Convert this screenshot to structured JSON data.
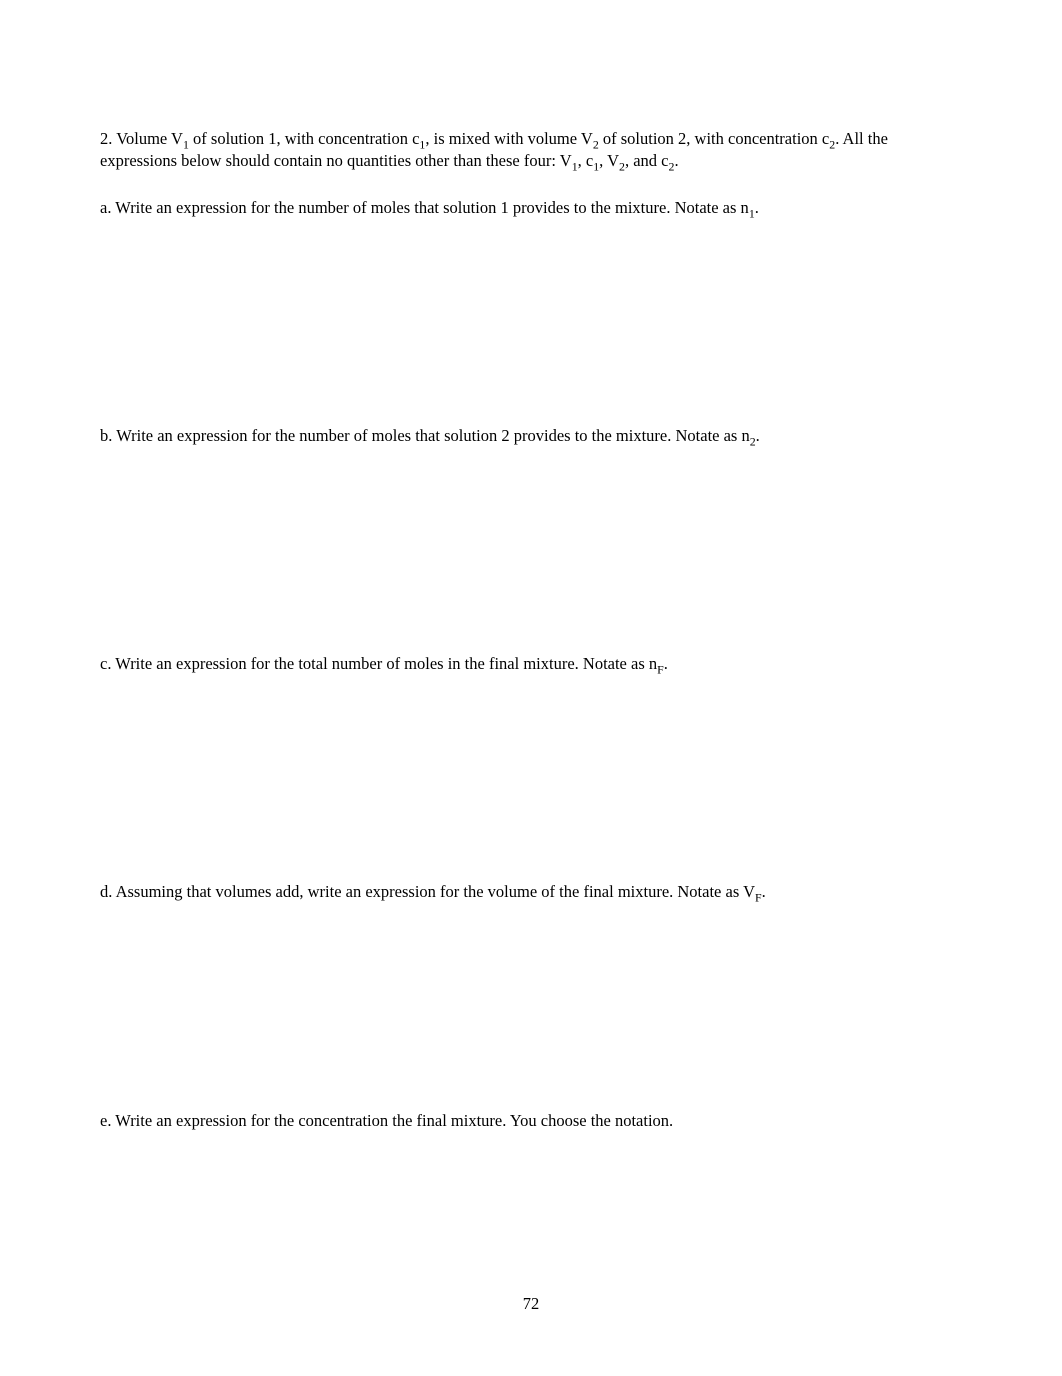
{
  "intro": {
    "prefix": "2. Volume   V",
    "sub1": "1",
    "part2": " of solution 1, with concentration c",
    "sub2": "1",
    "part3": ", is mixed with volume V",
    "sub3": "2",
    "part4": " of solution 2, with concentration c",
    "sub4": "2",
    "part5": ".  All the expressions below should contain no quantities other than these four: V",
    "sub5": "1",
    "part6": ", c",
    "sub6": "1",
    "part7": ", V",
    "sub7": "2",
    "part8": ", and c",
    "sub8": "2",
    "part9": "."
  },
  "qa": {
    "text1": "a.  Write an expression for the number of moles that solution 1 provides to the mixture.   Notate as n",
    "sub": "1",
    "text2": "."
  },
  "qb": {
    "text1": "b.  Write an expression for the number of moles that solution 2 provides to the mixture.   Notate as n",
    "sub": "2",
    "text2": "."
  },
  "qc": {
    "text1": "c.  Write an expression for the total number of moles in the final mixture.   Notate as n",
    "sub": "F",
    "text2": "."
  },
  "qd": {
    "text1": "d.  Assuming that volumes add, write an expression for the volume of the final mixture.   Notate as V",
    "sub": "F",
    "text2": "."
  },
  "qe": {
    "text1": "e.  Write an expression for the concentration the final mixture.  You choose the notation."
  },
  "page_number": "72"
}
